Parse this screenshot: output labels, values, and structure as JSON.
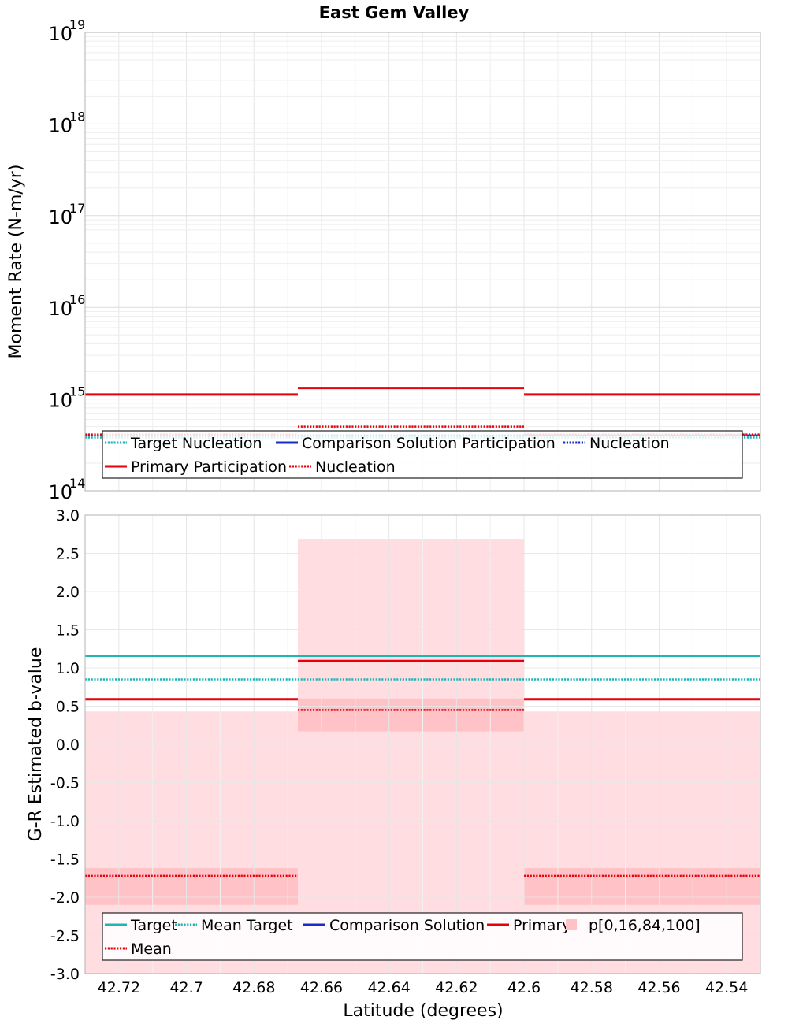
{
  "title": "East Gem Valley",
  "colors": {
    "target": "#1fb5b5",
    "comparison": "#1a2cc8",
    "primary": "#e8000b",
    "band_outer": "#ffdde0",
    "band_inner": "#ffc2c6",
    "grid": "#e6e6e6",
    "frame": "#b3b3b3"
  },
  "chart_data": [
    {
      "type": "line",
      "title": "East Gem Valley",
      "ylabel": "Moment Rate (N-m/yr)",
      "yscale": "log",
      "ylim": [
        100000000000000.0,
        1e+19
      ],
      "xlim": [
        42.73,
        42.53
      ],
      "x_reversed": true,
      "y_tick_labels": [
        {
          "base": "10",
          "exp": "14"
        },
        {
          "base": "10",
          "exp": "15"
        },
        {
          "base": "10",
          "exp": "16"
        },
        {
          "base": "10",
          "exp": "17"
        },
        {
          "base": "10",
          "exp": "18"
        },
        {
          "base": "10",
          "exp": "19"
        }
      ],
      "grid": true,
      "legend": {
        "placement": "bottom",
        "entries": [
          {
            "label": "Target Nucleation",
            "color": "#1fb5b5",
            "style": "dotted"
          },
          {
            "label": "Comparison Solution Participation",
            "color": "#1a2cc8",
            "style": "solid"
          },
          {
            "label": "Nucleation",
            "color": "#1a2cc8",
            "style": "dotted"
          },
          {
            "label": "Primary Participation",
            "color": "#e8000b",
            "style": "solid"
          },
          {
            "label": "Nucleation",
            "color": "#e8000b",
            "style": "dotted"
          }
        ]
      },
      "series": [
        {
          "key": "target_nucleation",
          "color": "#1fb5b5",
          "style": "dotted",
          "segments": [
            {
              "x": [
                42.73,
                42.53
              ],
              "y": 380000000000000.0
            }
          ]
        },
        {
          "key": "comparison_nucleation",
          "color": "#1a2cc8",
          "style": "dotted",
          "segments": [
            {
              "x": [
                42.73,
                42.53
              ],
              "y": 400000000000000.0
            }
          ]
        },
        {
          "key": "primary_participation",
          "color": "#e8000b",
          "style": "solid",
          "segments": [
            {
              "x": [
                42.73,
                42.667
              ],
              "y": 1120000000000000.0
            },
            {
              "x": [
                42.667,
                42.6
              ],
              "y": 1320000000000000.0
            },
            {
              "x": [
                42.6,
                42.53
              ],
              "y": 1120000000000000.0
            }
          ]
        },
        {
          "key": "primary_nucleation",
          "color": "#e8000b",
          "style": "dotted",
          "segments": [
            {
              "x": [
                42.73,
                42.667
              ],
              "y": 410000000000000.0
            },
            {
              "x": [
                42.667,
                42.6
              ],
              "y": 500000000000000.0
            },
            {
              "x": [
                42.6,
                42.53
              ],
              "y": 410000000000000.0
            }
          ]
        }
      ]
    },
    {
      "type": "line",
      "ylabel": "G-R Estimated b-value",
      "xlabel": "Latitude (degrees)",
      "ylim": [
        -3.0,
        3.0
      ],
      "xlim": [
        42.73,
        42.53
      ],
      "x_reversed": true,
      "y_ticks": [
        3.0,
        2.5,
        2.0,
        1.5,
        1.0,
        0.5,
        0.0,
        -0.5,
        -1.0,
        -1.5,
        -2.0,
        -2.5,
        -3.0
      ],
      "y_tick_labels": [
        "3.0",
        "2.5",
        "2.0",
        "1.5",
        "1.0",
        "0.5",
        "0.0",
        "-0.5",
        "-1.0",
        "-1.5",
        "-2.0",
        "-2.5",
        "-3.0"
      ],
      "x_ticks": [
        42.72,
        42.7,
        42.68,
        42.66,
        42.64,
        42.62,
        42.6,
        42.58,
        42.56,
        42.54
      ],
      "x_tick_labels": [
        "42.72",
        "42.7",
        "42.68",
        "42.66",
        "42.64",
        "42.62",
        "42.6",
        "42.58",
        "42.56",
        "42.54"
      ],
      "grid": true,
      "legend": {
        "placement": "bottom",
        "entries": [
          {
            "label": "Target",
            "color": "#1fb5b5",
            "style": "solid"
          },
          {
            "label": "Mean Target",
            "color": "#1fb5b5",
            "style": "dotted"
          },
          {
            "label": "Comparison Solution",
            "color": "#1a2cc8",
            "style": "solid"
          },
          {
            "label": "Primary",
            "color": "#e8000b",
            "style": "solid"
          },
          {
            "label": "p[0,16,84,100]",
            "color": "#ffc2c6",
            "style": "box"
          },
          {
            "label": "Mean",
            "color": "#e8000b",
            "style": "dotted"
          }
        ]
      },
      "bands": [
        {
          "x": [
            42.73,
            42.667
          ],
          "p0": -3.0,
          "p16": -2.1,
          "p84": -1.62,
          "p100": 0.43
        },
        {
          "x": [
            42.667,
            42.6
          ],
          "p0": -3.0,
          "p16": 0.17,
          "p84": 0.6,
          "p100": 2.69
        },
        {
          "x": [
            42.6,
            42.53
          ],
          "p0": -3.0,
          "p16": -2.1,
          "p84": -1.62,
          "p100": 0.43
        }
      ],
      "series": [
        {
          "key": "target",
          "color": "#1fb5b5",
          "style": "solid",
          "segments": [
            {
              "x": [
                42.73,
                42.53
              ],
              "y": 1.16
            }
          ]
        },
        {
          "key": "mean_target",
          "color": "#1fb5b5",
          "style": "dotted",
          "segments": [
            {
              "x": [
                42.73,
                42.53
              ],
              "y": 0.85
            }
          ]
        },
        {
          "key": "primary",
          "color": "#e8000b",
          "style": "solid",
          "segments": [
            {
              "x": [
                42.73,
                42.667
              ],
              "y": 0.59
            },
            {
              "x": [
                42.667,
                42.6
              ],
              "y": 1.09
            },
            {
              "x": [
                42.6,
                42.53
              ],
              "y": 0.59
            }
          ]
        },
        {
          "key": "primary_mean",
          "color": "#e8000b",
          "style": "dotted",
          "segments": [
            {
              "x": [
                42.73,
                42.667
              ],
              "y": -1.72
            },
            {
              "x": [
                42.667,
                42.6
              ],
              "y": 0.45
            },
            {
              "x": [
                42.6,
                42.53
              ],
              "y": -1.72
            }
          ]
        }
      ]
    }
  ]
}
